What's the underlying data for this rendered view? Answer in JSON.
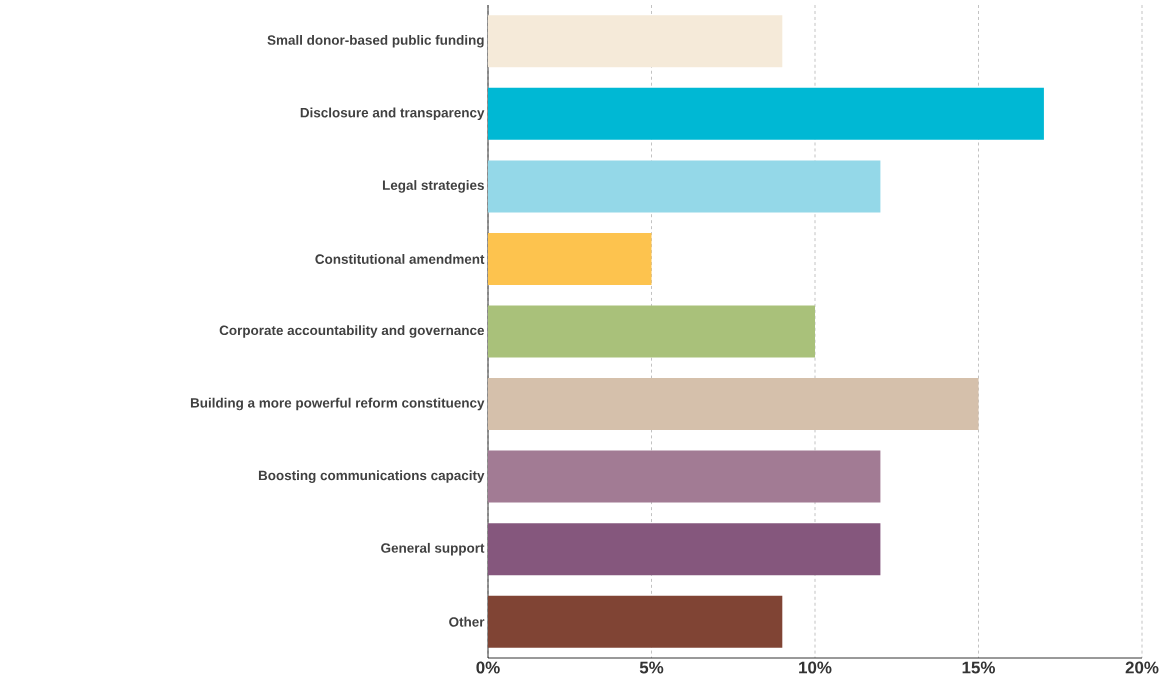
{
  "chart_data": {
    "type": "bar",
    "orientation": "horizontal",
    "categories": [
      "Small donor-based public funding",
      "Disclosure and transparency",
      "Legal strategies",
      "Constitutional amendment",
      "Corporate accountability and governance",
      "Building a more powerful reform constituency",
      "Boosting communications capacity",
      "General support",
      "Other"
    ],
    "values": [
      9,
      17,
      12,
      5,
      10,
      15,
      12,
      12,
      9
    ],
    "colors": [
      "#f5ead9",
      "#00b8d4",
      "#94d8e8",
      "#fdc34e",
      "#a9c17a",
      "#d5c0ab",
      "#a27b94",
      "#85577d",
      "#804434"
    ],
    "xlim": [
      0,
      20
    ],
    "xticks": [
      {
        "value": 0,
        "label": "0%"
      },
      {
        "value": 5,
        "label": "5%"
      },
      {
        "value": 10,
        "label": "10%"
      },
      {
        "value": 15,
        "label": "15%"
      },
      {
        "value": 20,
        "label": "20%"
      }
    ],
    "grid": "x"
  }
}
